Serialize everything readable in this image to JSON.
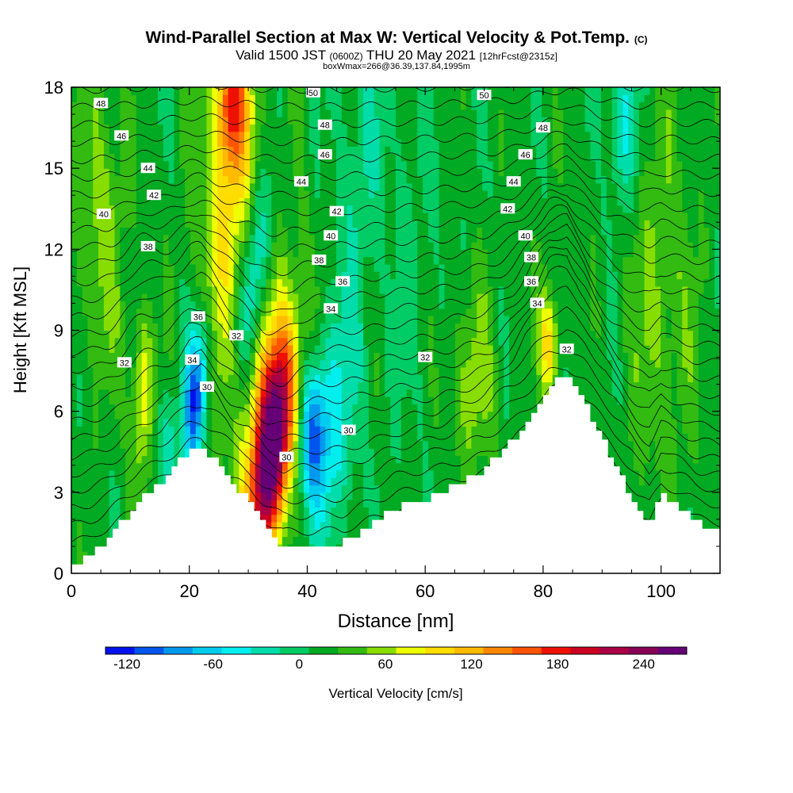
{
  "chart_data": {
    "type": "heatmap",
    "title": "Wind-Parallel Section at Max W: Vertical Velocity & Pot.Temp.",
    "title_mark": "(C)",
    "subtitle_main": "Valid 1500 JST",
    "subtitle_utc": "(0600Z)",
    "subtitle_date": "THU 20 May 2021",
    "subtitle_fcst": "[12hrFcst@2315z]",
    "subtitle2": "boxWmax=266@36.39,137.84,1995m",
    "xlabel": "Distance [nm]",
    "ylabel": "Height [Kft MSL]",
    "xlim": [
      0,
      110
    ],
    "ylim": [
      0,
      18
    ],
    "x_ticks": [
      "0",
      "20",
      "40",
      "60",
      "80",
      "100"
    ],
    "y_ticks": [
      "0",
      "3",
      "6",
      "9",
      "12",
      "15",
      "18"
    ],
    "colorbar": {
      "label": "Vertical Velocity [cm/s]",
      "min": -135,
      "max": 270,
      "tick_labels": [
        "-120",
        "-60",
        "0",
        "60",
        "120",
        "180",
        "240"
      ],
      "colors": [
        "#0011ee",
        "#0055ee",
        "#0099ee",
        "#00ccee",
        "#00eeee",
        "#00ddaa",
        "#00cc66",
        "#00aa22",
        "#33bb11",
        "#88dd00",
        "#eeff00",
        "#ffdd00",
        "#ffbb00",
        "#ff8800",
        "#ff5500",
        "#ee1100",
        "#cc0022",
        "#aa0044",
        "#880055",
        "#660077"
      ]
    },
    "background_w": 15,
    "terrain": [
      {
        "x": 0,
        "y": 0.3
      },
      {
        "x": 3,
        "y": 0.6
      },
      {
        "x": 6,
        "y": 1.2
      },
      {
        "x": 9,
        "y": 2.0
      },
      {
        "x": 12,
        "y": 2.8
      },
      {
        "x": 15,
        "y": 3.3
      },
      {
        "x": 18,
        "y": 4.0
      },
      {
        "x": 20,
        "y": 4.6
      },
      {
        "x": 22,
        "y": 4.8
      },
      {
        "x": 24,
        "y": 4.3
      },
      {
        "x": 27,
        "y": 3.4
      },
      {
        "x": 30,
        "y": 2.8
      },
      {
        "x": 33,
        "y": 1.7
      },
      {
        "x": 36,
        "y": 1.0
      },
      {
        "x": 40,
        "y": 1.0
      },
      {
        "x": 46,
        "y": 1.1
      },
      {
        "x": 50,
        "y": 1.7
      },
      {
        "x": 55,
        "y": 2.4
      },
      {
        "x": 62,
        "y": 2.9
      },
      {
        "x": 70,
        "y": 3.8
      },
      {
        "x": 75,
        "y": 4.9
      },
      {
        "x": 78,
        "y": 5.9
      },
      {
        "x": 81,
        "y": 6.9
      },
      {
        "x": 84,
        "y": 7.3
      },
      {
        "x": 87,
        "y": 6.4
      },
      {
        "x": 90,
        "y": 5.1
      },
      {
        "x": 93,
        "y": 3.8
      },
      {
        "x": 96,
        "y": 2.4
      },
      {
        "x": 98,
        "y": 1.7
      },
      {
        "x": 100,
        "y": 3.0
      },
      {
        "x": 103,
        "y": 2.5
      },
      {
        "x": 106,
        "y": 1.9
      },
      {
        "x": 110,
        "y": 1.6
      }
    ],
    "w_features": [
      {
        "x": 34,
        "y": 4.5,
        "sx": 2.2,
        "sy": 2.8,
        "tilt": 0.5,
        "w": 250
      },
      {
        "x": 33.5,
        "y": 6.5,
        "sx": 3.6,
        "sy": 3.6,
        "tilt": 0.5,
        "w": 60
      },
      {
        "x": 27,
        "y": 14,
        "sx": 3.5,
        "sy": 5,
        "tilt": 0.25,
        "w": 75
      },
      {
        "x": 27,
        "y": 17.5,
        "sx": 1.8,
        "sy": 1.8,
        "tilt": 0,
        "w": 110
      },
      {
        "x": 21,
        "y": 6.5,
        "sx": 1.5,
        "sy": 2.0,
        "tilt": 0.3,
        "w": -130
      },
      {
        "x": 41,
        "y": 5.2,
        "sx": 1.6,
        "sy": 1.8,
        "tilt": 0,
        "w": -90
      },
      {
        "x": 44,
        "y": 5.5,
        "sx": 3,
        "sy": 3,
        "tilt": 0.3,
        "w": -55
      },
      {
        "x": 31,
        "y": 11,
        "sx": 1.8,
        "sy": 2.6,
        "tilt": 0.4,
        "w": -75
      },
      {
        "x": 12,
        "y": 6.5,
        "sx": 1.3,
        "sy": 2.2,
        "tilt": 0.15,
        "w": 70
      },
      {
        "x": 16,
        "y": 4.5,
        "sx": 1.2,
        "sy": 1.5,
        "tilt": 0,
        "w": -40
      },
      {
        "x": 81,
        "y": 8.5,
        "sx": 1.2,
        "sy": 1.4,
        "tilt": 0,
        "w": 85
      },
      {
        "x": 93.5,
        "y": 16.5,
        "sx": 1.6,
        "sy": 2.0,
        "tilt": 0,
        "w": -60
      },
      {
        "x": 5,
        "y": 13,
        "sx": 3,
        "sy": 4,
        "tilt": 0,
        "w": 40
      },
      {
        "x": 68,
        "y": 7,
        "sx": 3,
        "sy": 2.5,
        "tilt": 0,
        "w": 40
      },
      {
        "x": 58,
        "y": 12,
        "sx": 4,
        "sy": 5,
        "tilt": 0,
        "w": -12
      },
      {
        "x": 100,
        "y": 10,
        "sx": 4,
        "sy": 5,
        "tilt": 0,
        "w": 35
      },
      {
        "x": 49,
        "y": 15,
        "sx": 3,
        "sy": 4,
        "tilt": 0.2,
        "w": -25
      }
    ],
    "isentrope_labels": [
      {
        "x": 5,
        "y": 17.4,
        "text": "48"
      },
      {
        "x": 8.5,
        "y": 16.2,
        "text": "46"
      },
      {
        "x": 13,
        "y": 15.0,
        "text": "44"
      },
      {
        "x": 14,
        "y": 14.0,
        "text": "42"
      },
      {
        "x": 5.5,
        "y": 13.3,
        "text": "40"
      },
      {
        "x": 13,
        "y": 12.1,
        "text": "38"
      },
      {
        "x": 21.5,
        "y": 9.5,
        "text": "36"
      },
      {
        "x": 28,
        "y": 8.8,
        "text": "32"
      },
      {
        "x": 20.5,
        "y": 7.9,
        "text": "34"
      },
      {
        "x": 9,
        "y": 7.8,
        "text": "32"
      },
      {
        "x": 23,
        "y": 6.9,
        "text": "30"
      },
      {
        "x": 41,
        "y": 17.8,
        "text": "50"
      },
      {
        "x": 43,
        "y": 16.6,
        "text": "48"
      },
      {
        "x": 43,
        "y": 15.5,
        "text": "46"
      },
      {
        "x": 39,
        "y": 14.5,
        "text": "44"
      },
      {
        "x": 45,
        "y": 13.4,
        "text": "42"
      },
      {
        "x": 44,
        "y": 12.5,
        "text": "40"
      },
      {
        "x": 42,
        "y": 11.6,
        "text": "38"
      },
      {
        "x": 46,
        "y": 10.8,
        "text": "36"
      },
      {
        "x": 44,
        "y": 9.8,
        "text": "34"
      },
      {
        "x": 60,
        "y": 8.0,
        "text": "32"
      },
      {
        "x": 47,
        "y": 5.3,
        "text": "30"
      },
      {
        "x": 36.5,
        "y": 4.3,
        "text": "30"
      },
      {
        "x": 70,
        "y": 17.7,
        "text": "50"
      },
      {
        "x": 80,
        "y": 16.5,
        "text": "48"
      },
      {
        "x": 77,
        "y": 15.5,
        "text": "46"
      },
      {
        "x": 75,
        "y": 14.5,
        "text": "44"
      },
      {
        "x": 74,
        "y": 13.5,
        "text": "42"
      },
      {
        "x": 77,
        "y": 12.5,
        "text": "40"
      },
      {
        "x": 78,
        "y": 11.7,
        "text": "38"
      },
      {
        "x": 78,
        "y": 10.8,
        "text": "36"
      },
      {
        "x": 79,
        "y": 10.0,
        "text": "34"
      },
      {
        "x": 84,
        "y": 8.3,
        "text": "32"
      }
    ]
  }
}
